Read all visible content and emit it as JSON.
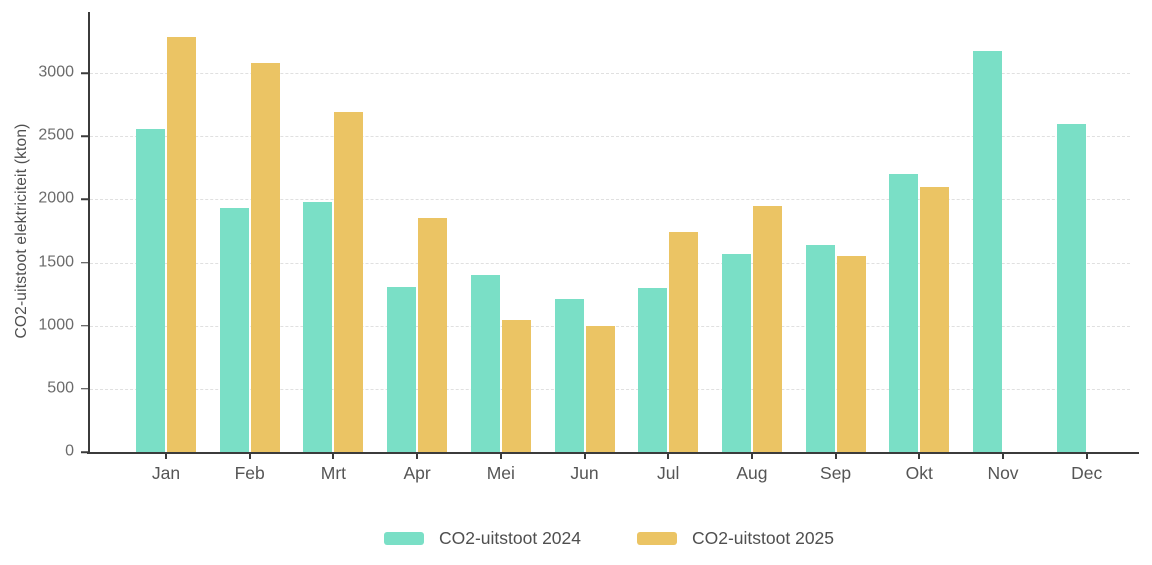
{
  "chart_data": {
    "type": "bar",
    "title": "",
    "ylabel": "CO2-uitstoot elektriciteit (kton)",
    "xlabel": "",
    "categories": [
      "Jan",
      "Feb",
      "Mrt",
      "Apr",
      "Mei",
      "Jun",
      "Jul",
      "Aug",
      "Sep",
      "Okt",
      "Nov",
      "Dec"
    ],
    "series": [
      {
        "name": "CO2-uitstoot 2024",
        "color": "#7ADFC6",
        "values": [
          2560,
          1930,
          1980,
          1305,
          1400,
          1215,
          1300,
          1565,
          1640,
          2205,
          3175,
          2600
        ]
      },
      {
        "name": "CO2-uitstoot 2025",
        "color": "#EBC464",
        "values": [
          3290,
          3080,
          2690,
          1850,
          1045,
          1000,
          1745,
          1950,
          1555,
          2095,
          null,
          null
        ]
      }
    ],
    "yticks": [
      0,
      500,
      1000,
      1500,
      2000,
      2500,
      3000
    ],
    "ylim": [
      0,
      3500
    ],
    "grid": "horizontal-dashed",
    "legend_position": "bottom"
  },
  "colors": {
    "background": "#ffffff",
    "axis": "#3b3b3b",
    "gridline": "#e0e0e0",
    "tick_text": "#6b6b6b",
    "label_text": "#4f4f4f",
    "series_2024": "#7ADFC6",
    "series_2025": "#EBC464"
  }
}
